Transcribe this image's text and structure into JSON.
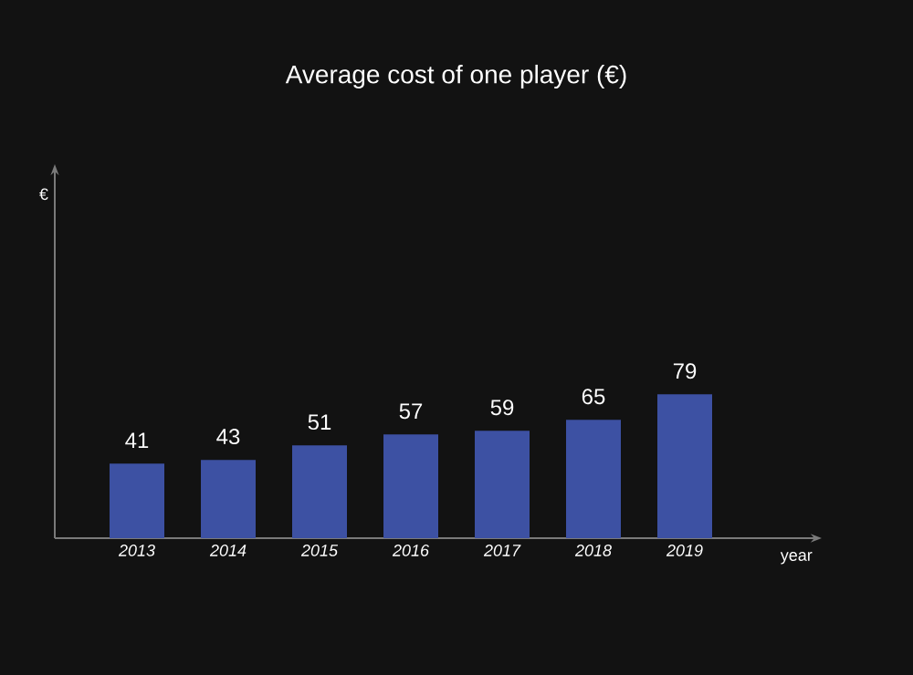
{
  "chart_data": {
    "type": "bar",
    "title": "Average cost of one player (€)",
    "xlabel": "year",
    "annotations": [
      "€"
    ],
    "categories": [
      "2013",
      "2014",
      "2015",
      "2016",
      "2017",
      "2018",
      "2019"
    ],
    "values": [
      41,
      43,
      51,
      57,
      59,
      65,
      79
    ],
    "color": "#3d51a3",
    "data_labels": true
  }
}
